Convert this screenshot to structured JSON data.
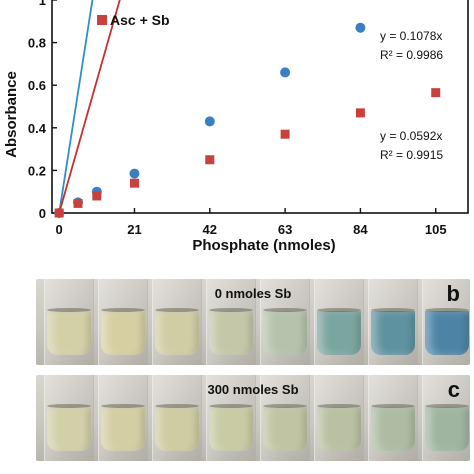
{
  "chart_data": {
    "type": "scatter",
    "xlabel": "Phosphate (nmoles)",
    "ylabel": "Absorbance",
    "xlim": [
      -2,
      114
    ],
    "ylim": [
      0,
      1.0
    ],
    "xticks": [
      "0",
      "21",
      "42",
      "63",
      "84",
      "105"
    ],
    "yticks": [
      "0",
      "0.2",
      "0.4",
      "0.6",
      "0.8",
      "1"
    ],
    "xtick_values": [
      0,
      21,
      42,
      63,
      84,
      105
    ],
    "ytick_values": [
      0,
      0.2,
      0.4,
      0.6,
      0.8,
      1.0
    ],
    "series": [
      {
        "name": "",
        "marker": "circle",
        "color": "#3a7fc4",
        "line_color": "#2f8fc8",
        "x": [
          0,
          5.25,
          10.5,
          21,
          42,
          63,
          84
        ],
        "y": [
          0.0,
          0.05,
          0.1,
          0.185,
          0.43,
          0.66,
          0.87
        ],
        "fit_slope": 0.1078,
        "equation": "y = 0.1078x",
        "r2": "R² = 0.9986"
      },
      {
        "name": "Asc + Sb",
        "marker": "square",
        "color": "#c8413c",
        "line_color": "#c8302c",
        "x": [
          0,
          5.25,
          10.5,
          21,
          42,
          63,
          84,
          105
        ],
        "y": [
          0.0,
          0.045,
          0.08,
          0.14,
          0.25,
          0.37,
          0.47,
          0.565
        ],
        "fit_slope": 0.0592,
        "equation": "y = 0.0592x",
        "r2": "R² = 0.9915"
      }
    ]
  },
  "panels": [
    {
      "caption": "0 nmoles Sb",
      "letter": "b",
      "liquid_colors": [
        "#d3d0a8",
        "#d6cfa2",
        "#cfcda4",
        "#c4c7a8",
        "#b5c2ac",
        "#7aa5a0",
        "#5e92a0",
        "#4d84a6"
      ]
    },
    {
      "caption": "300 nmoles Sb",
      "letter": "c",
      "liquid_colors": [
        "#d2d0a8",
        "#d3cea4",
        "#cdcca2",
        "#c8cba4",
        "#c0c4a2",
        "#b9c1a2",
        "#adbca2",
        "#9fb5a0"
      ]
    }
  ]
}
